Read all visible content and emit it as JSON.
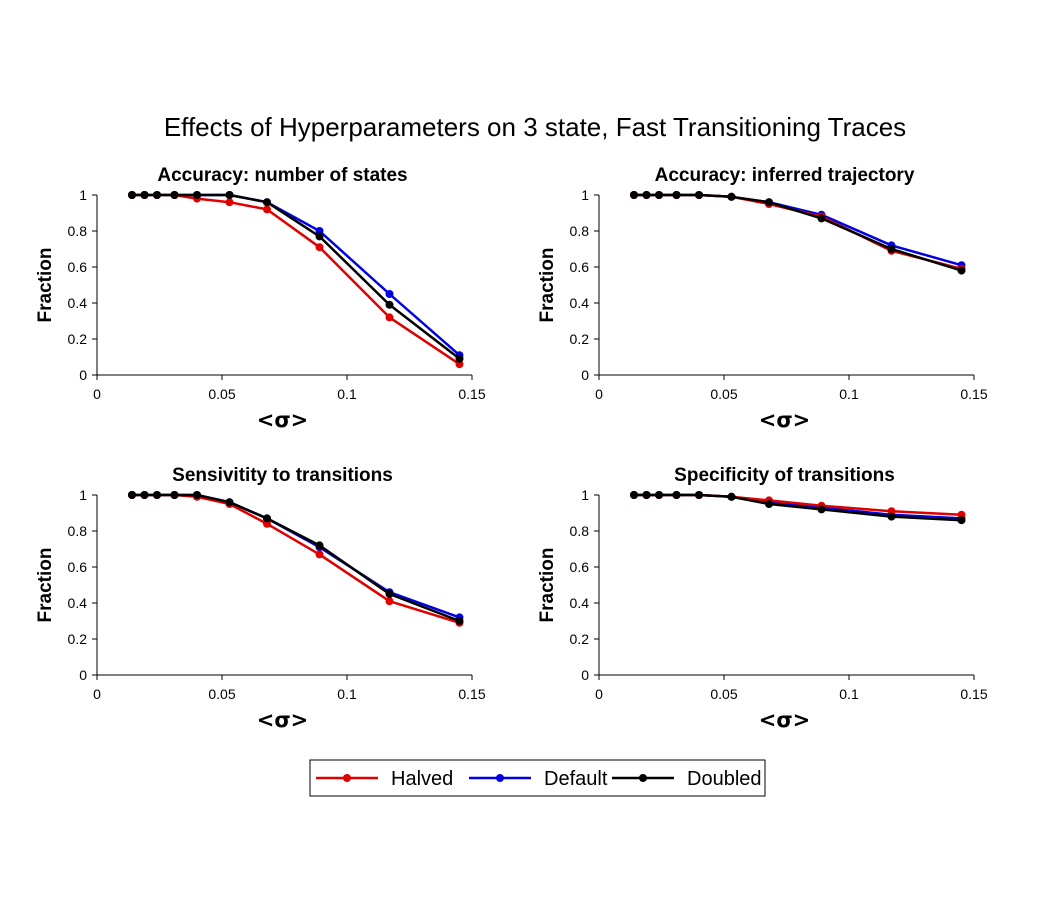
{
  "figure_title": "Effects of Hyperparameters on 3 state, Fast Transitioning Traces",
  "colors": {
    "Halved": "#e00000",
    "Default": "#0000e0",
    "Doubled": "#000000"
  },
  "legend": {
    "placement": "bottom-center",
    "entries": [
      "Halved",
      "Default",
      "Doubled"
    ]
  },
  "chart_data": [
    {
      "type": "line",
      "title": "Accuracy: number of states",
      "xlabel": "<σ>",
      "ylabel": "Fraction",
      "xlim": [
        0,
        0.15
      ],
      "ylim": [
        0,
        1
      ],
      "xticks": [
        0,
        0.05,
        0.1,
        0.15
      ],
      "xtick_labels": [
        "0",
        "0.05",
        "0.1",
        "0.15"
      ],
      "yticks": [
        0,
        0.2,
        0.4,
        0.6,
        0.8,
        1
      ],
      "ytick_labels": [
        "0",
        "0.2",
        "0.4",
        "0.6",
        "0.8",
        "1"
      ],
      "x": [
        0.014,
        0.019,
        0.024,
        0.031,
        0.04,
        0.053,
        0.068,
        0.089,
        0.117,
        0.145
      ],
      "series": [
        {
          "name": "Halved",
          "values": [
            1,
            1,
            1,
            1,
            0.98,
            0.96,
            0.92,
            0.71,
            0.32,
            0.06
          ]
        },
        {
          "name": "Default",
          "values": [
            1,
            1,
            1,
            1,
            1,
            1,
            0.96,
            0.8,
            0.45,
            0.11
          ]
        },
        {
          "name": "Doubled",
          "values": [
            1,
            1,
            1,
            1,
            1,
            1,
            0.96,
            0.77,
            0.39,
            0.09
          ]
        }
      ]
    },
    {
      "type": "line",
      "title": "Accuracy: inferred trajectory",
      "xlabel": "<σ>",
      "ylabel": "Fraction",
      "xlim": [
        0,
        0.15
      ],
      "ylim": [
        0,
        1
      ],
      "xticks": [
        0,
        0.05,
        0.1,
        0.15
      ],
      "xtick_labels": [
        "0",
        "0.05",
        "0.1",
        "0.15"
      ],
      "yticks": [
        0,
        0.2,
        0.4,
        0.6,
        0.8,
        1
      ],
      "ytick_labels": [
        "0",
        "0.2",
        "0.4",
        "0.6",
        "0.8",
        "1"
      ],
      "x": [
        0.014,
        0.019,
        0.024,
        0.031,
        0.04,
        0.053,
        0.068,
        0.089,
        0.117,
        0.145
      ],
      "series": [
        {
          "name": "Halved",
          "values": [
            1,
            1,
            1,
            1,
            1,
            0.99,
            0.95,
            0.88,
            0.69,
            0.59
          ]
        },
        {
          "name": "Default",
          "values": [
            1,
            1,
            1,
            1,
            1,
            0.99,
            0.96,
            0.89,
            0.72,
            0.61
          ]
        },
        {
          "name": "Doubled",
          "values": [
            1,
            1,
            1,
            1,
            1,
            0.99,
            0.96,
            0.87,
            0.7,
            0.58
          ]
        }
      ]
    },
    {
      "type": "line",
      "title": "Sensivitity to transitions",
      "xlabel": "<σ>",
      "ylabel": "Fraction",
      "xlim": [
        0,
        0.15
      ],
      "ylim": [
        0,
        1
      ],
      "xticks": [
        0,
        0.05,
        0.1,
        0.15
      ],
      "xtick_labels": [
        "0",
        "0.05",
        "0.1",
        "0.15"
      ],
      "yticks": [
        0,
        0.2,
        0.4,
        0.6,
        0.8,
        1
      ],
      "ytick_labels": [
        "0",
        "0.2",
        "0.4",
        "0.6",
        "0.8",
        "1"
      ],
      "x": [
        0.014,
        0.019,
        0.024,
        0.031,
        0.04,
        0.053,
        0.068,
        0.089,
        0.117,
        0.145
      ],
      "series": [
        {
          "name": "Halved",
          "values": [
            1,
            1,
            1,
            1,
            0.99,
            0.95,
            0.84,
            0.67,
            0.41,
            0.29
          ]
        },
        {
          "name": "Default",
          "values": [
            1,
            1,
            1,
            1,
            1,
            0.96,
            0.87,
            0.71,
            0.46,
            0.32
          ]
        },
        {
          "name": "Doubled",
          "values": [
            1,
            1,
            1,
            1,
            1,
            0.96,
            0.87,
            0.72,
            0.45,
            0.3
          ]
        }
      ]
    },
    {
      "type": "line",
      "title": "Specificity of transitions",
      "xlabel": "<σ>",
      "ylabel": "Fraction",
      "xlim": [
        0,
        0.15
      ],
      "ylim": [
        0,
        1
      ],
      "xticks": [
        0,
        0.05,
        0.1,
        0.15
      ],
      "xtick_labels": [
        "0",
        "0.05",
        "0.1",
        "0.15"
      ],
      "yticks": [
        0,
        0.2,
        0.4,
        0.6,
        0.8,
        1
      ],
      "ytick_labels": [
        "0",
        "0.2",
        "0.4",
        "0.6",
        "0.8",
        "1"
      ],
      "x": [
        0.014,
        0.019,
        0.024,
        0.031,
        0.04,
        0.053,
        0.068,
        0.089,
        0.117,
        0.145
      ],
      "series": [
        {
          "name": "Halved",
          "values": [
            1,
            1,
            1,
            1,
            1,
            0.99,
            0.97,
            0.94,
            0.91,
            0.89
          ]
        },
        {
          "name": "Default",
          "values": [
            1,
            1,
            1,
            1,
            1,
            0.99,
            0.96,
            0.93,
            0.89,
            0.87
          ]
        },
        {
          "name": "Doubled",
          "values": [
            1,
            1,
            1,
            1,
            1,
            0.99,
            0.95,
            0.92,
            0.88,
            0.86
          ]
        }
      ]
    }
  ]
}
